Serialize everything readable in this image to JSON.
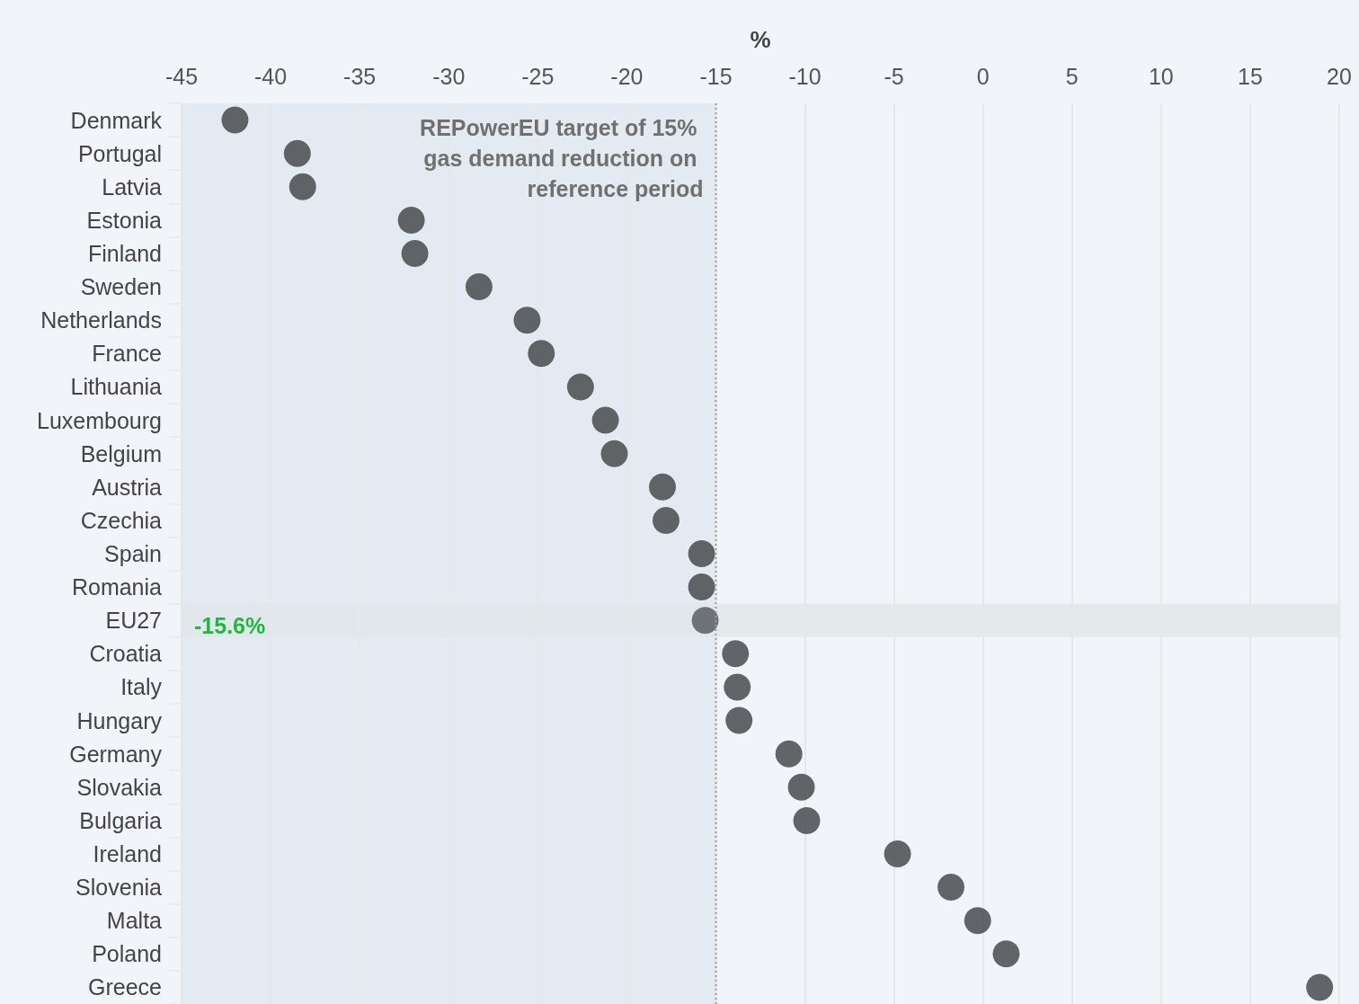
{
  "chart_data": {
    "type": "scatter",
    "orientation": "horizontal",
    "xlabel": "%",
    "categories": [
      "Denmark",
      "Portugal",
      "Latvia",
      "Estonia",
      "Finland",
      "Sweden",
      "Netherlands",
      "France",
      "Lithuania",
      "Luxembourg",
      "Belgium",
      "Austria",
      "Czechia",
      "Spain",
      "Romania",
      "EU27",
      "Croatia",
      "Italy",
      "Hungary",
      "Germany",
      "Slovakia",
      "Bulgaria",
      "Ireland",
      "Slovenia",
      "Malta",
      "Poland",
      "Greece"
    ],
    "values": [
      -42.0,
      -38.5,
      -38.2,
      -32.1,
      -31.9,
      -28.3,
      -25.6,
      -24.8,
      -22.6,
      -21.2,
      -20.7,
      -18.0,
      -17.8,
      -15.8,
      -15.8,
      -15.6,
      -13.9,
      -13.8,
      -13.7,
      -10.9,
      -10.2,
      -9.9,
      -4.8,
      -1.8,
      -0.3,
      1.3,
      18.9
    ],
    "colors": [
      "#3d4144",
      "#3d4144",
      "#3d4144",
      "#3d4144",
      "#3d4144",
      "#3d4144",
      "#3d4144",
      "#3d4144",
      "#3d4144",
      "#3d4144",
      "#3d4144",
      "#3d4144",
      "#3d4144",
      "#3d4144",
      "#3d4144",
      "#50565a",
      "#3d4144",
      "#3d4144",
      "#3d4144",
      "#3d4144",
      "#3d4144",
      "#3d4144",
      "#3d4144",
      "#3d4144",
      "#3d4144",
      "#3d4144",
      "#3d4144"
    ],
    "xlim": [
      -45,
      20
    ],
    "xticks": [
      -45,
      -40,
      -35,
      -30,
      -25,
      -20,
      -15,
      -10,
      -5,
      0,
      5,
      10,
      15,
      20
    ],
    "grid": "x",
    "marker": "circle",
    "ref_lines": [
      {
        "axis": "x",
        "value": -15,
        "label": "REPowerEU target of 15% gas demand reduction on reference period",
        "color": "#9a9ea3",
        "line_style": "dotted"
      }
    ],
    "bands": [
      {
        "axis": "x",
        "from": -45,
        "to": -15,
        "color": "#e3eaf1"
      },
      {
        "axis": "y",
        "from": "EU27",
        "to": "EU27",
        "color": "#e2e6ea"
      }
    ],
    "annotations": [
      "-15.6%"
    ]
  }
}
